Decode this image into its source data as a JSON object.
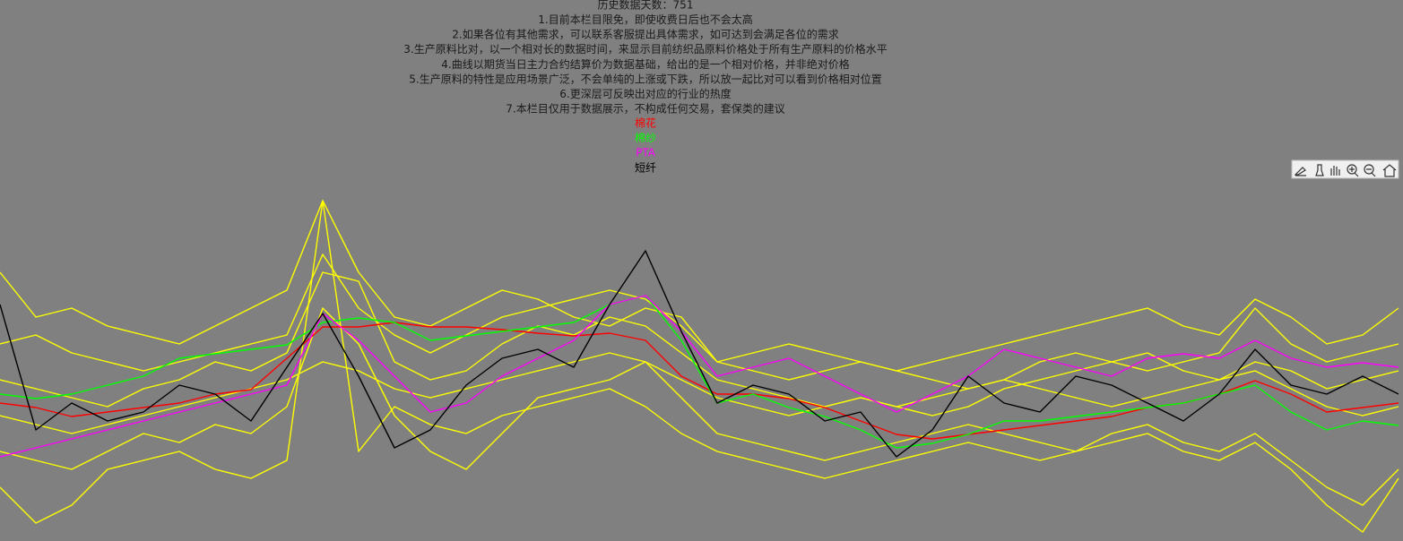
{
  "chart_data": {
    "type": "line",
    "title": "历史数据天数：751",
    "notes": [
      "1.目前本栏目限免，即使收费日后也不会太高",
      "2.如果各位有其他需求，可以联系客服提出具体需求，如可达到会满足各位的需求",
      "3.生产原料比对，以一个相对长的数据时间，来显示目前纺织品原料价格处于所有生产原料的价格水平",
      "4.曲线以期货当日主力合约结算价为数据基础，给出的是一个相对价格，并非绝对价格",
      "5.生产原料的特性是应用场景广泛，不会单纯的上涨或下跌，所以放一起比对可以看到价格相对位置",
      "6.更深层可反映出对应的行业的热度",
      "7.本栏目仅用于数据展示，不构成任何交易，套保类的建议"
    ],
    "ylim": [
      0,
      400
    ],
    "series": [
      {
        "color": "#ffff00",
        "values": [
          300,
          250,
          260,
          240,
          230,
          220,
          240,
          260,
          280,
          380,
          300,
          250,
          240,
          260,
          280,
          270,
          250,
          240,
          260,
          250,
          200,
          210,
          220,
          210,
          200,
          190,
          200,
          210,
          220,
          230,
          240,
          250,
          260,
          240,
          230,
          270,
          250,
          220,
          230,
          260
        ]
      },
      {
        "color": "#ffff00",
        "values": [
          180,
          170,
          160,
          150,
          170,
          180,
          200,
          190,
          210,
          300,
          290,
          200,
          180,
          190,
          220,
          240,
          230,
          250,
          240,
          210,
          180,
          170,
          160,
          150,
          160,
          150,
          140,
          150,
          170,
          180,
          190,
          200,
          210,
          190,
          180,
          200,
          190,
          170,
          180,
          190
        ]
      },
      {
        "color": "#ffff00",
        "values": [
          100,
          90,
          80,
          100,
          120,
          110,
          130,
          120,
          150,
          260,
          220,
          140,
          100,
          80,
          120,
          160,
          170,
          180,
          200,
          160,
          120,
          110,
          100,
          90,
          100,
          110,
          120,
          130,
          120,
          110,
          100,
          120,
          130,
          110,
          100,
          120,
          90,
          60,
          40,
          80
        ]
      },
      {
        "color": "#ffff00",
        "values": [
          220,
          230,
          210,
          200,
          190,
          200,
          210,
          220,
          230,
          320,
          260,
          230,
          210,
          230,
          250,
          260,
          270,
          280,
          270,
          240,
          200,
          190,
          180,
          190,
          200,
          190,
          180,
          170,
          180,
          200,
          210,
          200,
          190,
          200,
          210,
          260,
          220,
          200,
          210,
          220
        ]
      },
      {
        "color": "#ffff00",
        "values": [
          60,
          20,
          40,
          80,
          90,
          100,
          80,
          70,
          90,
          380,
          100,
          150,
          130,
          120,
          140,
          150,
          160,
          170,
          150,
          120,
          100,
          90,
          80,
          70,
          80,
          90,
          100,
          110,
          100,
          90,
          100,
          110,
          120,
          100,
          90,
          110,
          80,
          40,
          10,
          70
        ]
      },
      {
        "color": "#ffff00",
        "values": [
          140,
          130,
          120,
          130,
          140,
          150,
          160,
          170,
          180,
          200,
          190,
          170,
          160,
          170,
          180,
          190,
          200,
          210,
          200,
          180,
          160,
          150,
          140,
          150,
          160,
          150,
          160,
          170,
          180,
          170,
          160,
          150,
          160,
          170,
          180,
          190,
          170,
          150,
          140,
          150
        ]
      },
      {
        "name": "棉花",
        "color": "#ff0000",
        "values": [
          154,
          149,
          139,
          144,
          149,
          154,
          164,
          169,
          204,
          239,
          239,
          244,
          239,
          239,
          236,
          232,
          229,
          232,
          224,
          184,
          164,
          164,
          159,
          149,
          134,
          119,
          114,
          119,
          124,
          129,
          134,
          139,
          149,
          154,
          164,
          179,
          164,
          144,
          149,
          154
        ]
      },
      {
        "name": "棉纱",
        "color": "#00ff00",
        "values": [
          164,
          159,
          164,
          174,
          184,
          204,
          209,
          214,
          219,
          244,
          249,
          244,
          224,
          229,
          234,
          239,
          244,
          264,
          274,
          224,
          154,
          164,
          149,
          139,
          124,
          104,
          109,
          119,
          134,
          134,
          139,
          144,
          149,
          154,
          164,
          174,
          144,
          124,
          134,
          129
        ]
      },
      {
        "name": "PTA",
        "color": "#ff00ff",
        "values": [
          94,
          104,
          114,
          124,
          134,
          144,
          154,
          164,
          174,
          254,
          224,
          184,
          144,
          154,
          184,
          204,
          224,
          264,
          274,
          234,
          184,
          194,
          204,
          184,
          164,
          144,
          164,
          184,
          214,
          204,
          194,
          184,
          204,
          209,
          204,
          224,
          204,
          194,
          199,
          194
        ]
      },
      {
        "name": "短纤",
        "color": "#000000",
        "values": [
          264,
          124,
          154,
          134,
          144,
          174,
          164,
          134,
          194,
          254,
          184,
          104,
          124,
          174,
          204,
          214,
          194,
          264,
          324,
          234,
          154,
          174,
          164,
          134,
          144,
          94,
          124,
          184,
          154,
          144,
          184,
          174,
          154,
          134,
          164,
          214,
          174,
          164,
          184,
          164
        ]
      }
    ]
  }
}
